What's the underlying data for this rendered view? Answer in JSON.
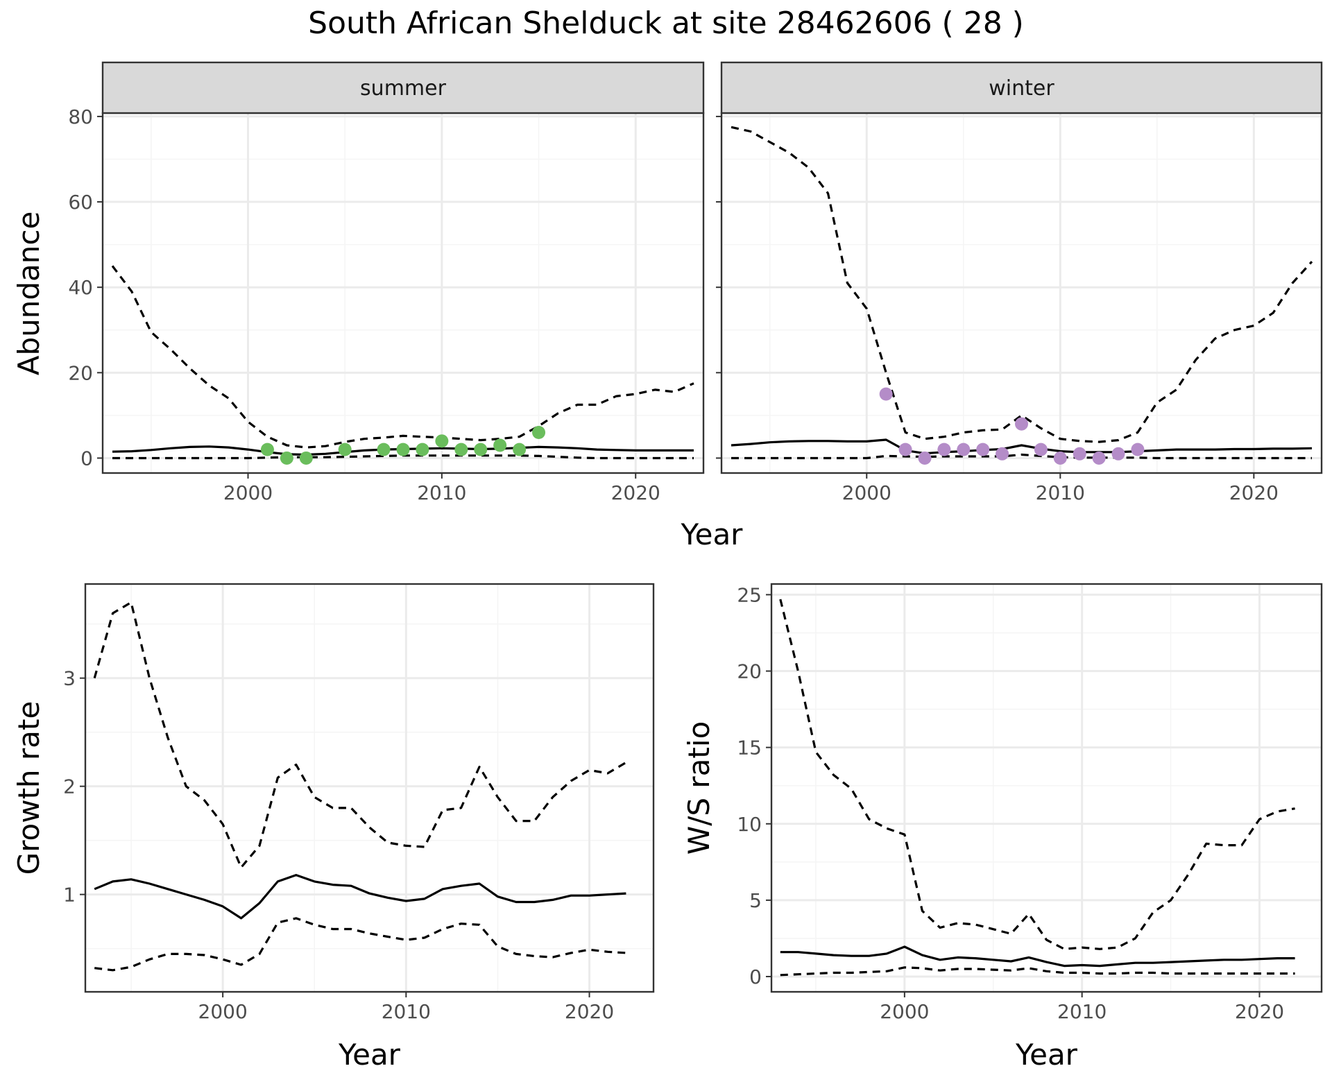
{
  "figure": {
    "title": "South African Shelduck at site 28462606 ( 28 )"
  },
  "colors": {
    "summer_points": "#6abd5c",
    "winter_points": "#b48cc8",
    "line": "#000000",
    "grid_major": "#ebebeb",
    "grid_minor": "#f5f5f5",
    "strip_fill": "#d9d9d9",
    "panel_border": "#333333",
    "tick_text": "#4d4d4d"
  },
  "chart_data": [
    {
      "id": "abundance",
      "type": "line",
      "facet_labels": [
        "summer",
        "winter"
      ],
      "xlabel": "Year",
      "ylabel": "Abundance",
      "xlim": [
        1992.5,
        2023.5
      ],
      "ylim": [
        -3.5,
        80.8
      ],
      "xticks": [
        2000,
        2010,
        2020
      ],
      "yticks": [
        0,
        20,
        40,
        60,
        80
      ],
      "x": [
        1993,
        1994,
        1995,
        1996,
        1997,
        1998,
        1999,
        2000,
        2001,
        2002,
        2003,
        2004,
        2005,
        2006,
        2007,
        2008,
        2009,
        2010,
        2011,
        2012,
        2013,
        2014,
        2015,
        2016,
        2017,
        2018,
        2019,
        2020,
        2021,
        2022,
        2023
      ],
      "facets": [
        {
          "name": "summer",
          "series": [
            {
              "style": "dashed",
              "values": [
                45,
                39,
                29.5,
                25.5,
                21,
                17,
                14,
                8.5,
                5,
                3,
                2.5,
                2.8,
                3.8,
                4.5,
                4.8,
                5.2,
                5,
                4.8,
                4.5,
                4.2,
                4.5,
                5,
                7.5,
                10.5,
                12.5,
                12.5,
                14.5,
                15,
                16,
                15.5,
                17.5
              ]
            },
            {
              "style": "solid",
              "values": [
                1.5,
                1.6,
                1.9,
                2.3,
                2.6,
                2.7,
                2.5,
                2,
                1.4,
                0.9,
                0.8,
                1,
                1.4,
                1.8,
                2,
                2.1,
                2.2,
                2.3,
                2.2,
                2.1,
                2.2,
                2.4,
                2.6,
                2.5,
                2.3,
                2,
                1.9,
                1.8,
                1.8,
                1.8,
                1.8
              ]
            },
            {
              "style": "dashed",
              "values": [
                0,
                0,
                0,
                0,
                0,
                0,
                0,
                0,
                0.1,
                0.2,
                0.2,
                0.2,
                0.3,
                0.4,
                0.5,
                0.6,
                0.6,
                0.6,
                0.6,
                0.6,
                0.6,
                0.6,
                0.5,
                0.3,
                0.1,
                0,
                0,
                0,
                0,
                0,
                0
              ]
            }
          ],
          "points": {
            "x": [
              2001,
              2002,
              2003,
              2005,
              2007,
              2008,
              2009,
              2010,
              2011,
              2012,
              2013,
              2014,
              2015
            ],
            "y": [
              2,
              0,
              0,
              2,
              2,
              2,
              2,
              4,
              2,
              2,
              3,
              2,
              6
            ]
          }
        },
        {
          "name": "winter",
          "series": [
            {
              "style": "dashed",
              "values": [
                77.5,
                76.5,
                74,
                71.5,
                68,
                62,
                41,
                35,
                20,
                6,
                4.5,
                5,
                6,
                6.5,
                6.7,
                10,
                7,
                4.5,
                4,
                3.8,
                4.2,
                6,
                13,
                16,
                23,
                28,
                30,
                31,
                34,
                41,
                46
              ]
            },
            {
              "style": "solid",
              "values": [
                3,
                3.3,
                3.7,
                3.9,
                4,
                4,
                3.9,
                3.9,
                4.3,
                1.8,
                1.1,
                1.4,
                1.6,
                1.9,
                2.1,
                3,
                2.2,
                1.6,
                1.4,
                1.4,
                1.4,
                1.6,
                1.8,
                2,
                2,
                2,
                2.1,
                2.1,
                2.2,
                2.2,
                2.3
              ]
            },
            {
              "style": "dashed",
              "values": [
                0,
                0,
                0,
                0,
                0,
                0,
                0,
                0,
                0.5,
                0.4,
                0.3,
                0.4,
                0.4,
                0.4,
                0.4,
                0.8,
                0.5,
                0.2,
                0.1,
                0.1,
                0.1,
                0.1,
                0,
                0,
                0,
                0,
                0,
                0,
                0,
                0,
                0
              ]
            }
          ],
          "points": {
            "x": [
              2001,
              2002,
              2003,
              2004,
              2005,
              2006,
              2007,
              2008,
              2009,
              2010,
              2011,
              2012,
              2013,
              2014
            ],
            "y": [
              15,
              2,
              0,
              2,
              2,
              2,
              1,
              8,
              2,
              0,
              1,
              0,
              1,
              2
            ]
          }
        }
      ]
    },
    {
      "id": "growth",
      "type": "line",
      "xlabel": "Year",
      "ylabel": "Growth rate",
      "xlim": [
        1992.5,
        2023.5
      ],
      "ylim": [
        0.1,
        3.87
      ],
      "xticks": [
        2000,
        2010,
        2020
      ],
      "yticks": [
        1,
        2,
        3
      ],
      "x": [
        1993,
        1994,
        1995,
        1996,
        1997,
        1998,
        1999,
        2000,
        2001,
        2002,
        2003,
        2004,
        2005,
        2006,
        2007,
        2008,
        2009,
        2010,
        2011,
        2012,
        2013,
        2014,
        2015,
        2016,
        2017,
        2018,
        2019,
        2020,
        2021,
        2022
      ],
      "series": [
        {
          "style": "dashed",
          "values": [
            3,
            3.6,
            3.7,
            3,
            2.45,
            2,
            1.87,
            1.65,
            1.25,
            1.45,
            2.08,
            2.2,
            1.9,
            1.8,
            1.8,
            1.62,
            1.48,
            1.45,
            1.44,
            1.78,
            1.8,
            2.18,
            1.9,
            1.68,
            1.68,
            1.9,
            2.05,
            2.15,
            2.12,
            2.22
          ]
        },
        {
          "style": "solid",
          "values": [
            1.05,
            1.12,
            1.14,
            1.1,
            1.05,
            1,
            0.95,
            0.89,
            0.78,
            0.92,
            1.12,
            1.18,
            1.12,
            1.09,
            1.08,
            1.01,
            0.97,
            0.94,
            0.96,
            1.05,
            1.08,
            1.1,
            0.98,
            0.93,
            0.93,
            0.95,
            0.99,
            0.99,
            1,
            1.01
          ]
        },
        {
          "style": "dashed",
          "values": [
            0.32,
            0.3,
            0.33,
            0.4,
            0.45,
            0.45,
            0.44,
            0.4,
            0.35,
            0.45,
            0.74,
            0.78,
            0.72,
            0.68,
            0.68,
            0.64,
            0.61,
            0.58,
            0.6,
            0.68,
            0.73,
            0.72,
            0.52,
            0.45,
            0.43,
            0.42,
            0.46,
            0.49,
            0.47,
            0.46
          ]
        }
      ]
    },
    {
      "id": "ws_ratio",
      "type": "line",
      "xlabel": "Year",
      "ylabel": "W/S ratio",
      "xlim": [
        1992.5,
        2023.5
      ],
      "ylim": [
        -1,
        25.7
      ],
      "xticks": [
        2000,
        2010,
        2020
      ],
      "yticks": [
        0,
        5,
        10,
        15,
        20,
        25
      ],
      "x": [
        1993,
        1994,
        1995,
        1996,
        1997,
        1998,
        1999,
        2000,
        2001,
        2002,
        2003,
        2004,
        2005,
        2006,
        2007,
        2008,
        2009,
        2010,
        2011,
        2012,
        2013,
        2014,
        2015,
        2016,
        2017,
        2018,
        2019,
        2020,
        2021,
        2022
      ],
      "series": [
        {
          "style": "dashed",
          "values": [
            24.7,
            20,
            14.7,
            13.2,
            12.3,
            10.3,
            9.7,
            9.3,
            4.3,
            3.2,
            3.5,
            3.4,
            3.1,
            2.8,
            4.1,
            2.4,
            1.8,
            1.9,
            1.8,
            1.9,
            2.5,
            4.2,
            5,
            6.7,
            8.7,
            8.6,
            8.6,
            10.3,
            10.8,
            11
          ]
        },
        {
          "style": "solid",
          "values": [
            1.6,
            1.6,
            1.5,
            1.4,
            1.35,
            1.35,
            1.5,
            1.95,
            1.4,
            1.1,
            1.25,
            1.2,
            1.1,
            1,
            1.25,
            0.95,
            0.7,
            0.75,
            0.7,
            0.8,
            0.9,
            0.9,
            0.95,
            1,
            1.05,
            1.1,
            1.1,
            1.15,
            1.2,
            1.2
          ]
        },
        {
          "style": "dashed",
          "values": [
            0.1,
            0.15,
            0.2,
            0.25,
            0.25,
            0.3,
            0.35,
            0.6,
            0.55,
            0.4,
            0.5,
            0.5,
            0.45,
            0.4,
            0.55,
            0.35,
            0.25,
            0.25,
            0.2,
            0.2,
            0.25,
            0.25,
            0.2,
            0.2,
            0.2,
            0.2,
            0.2,
            0.2,
            0.2,
            0.2
          ]
        }
      ]
    }
  ]
}
